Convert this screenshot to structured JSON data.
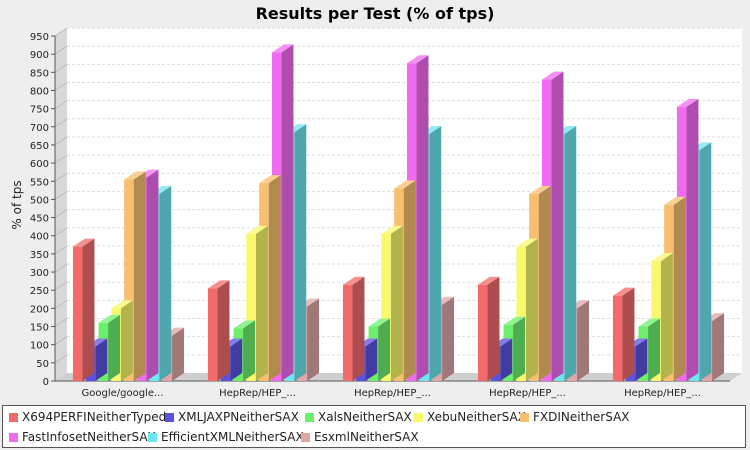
{
  "chart_data": {
    "type": "bar",
    "title": "Results per Test (% of tps)",
    "xlabel": "",
    "ylabel": "% of tps",
    "ylim": [
      0,
      950
    ],
    "yticks": [
      "0",
      "50",
      "100",
      "150",
      "200",
      "250",
      "300",
      "350",
      "400",
      "450",
      "500",
      "550",
      "600",
      "650",
      "700",
      "750",
      "800",
      "850",
      "900",
      "950"
    ],
    "grid": true,
    "legend_placement": "bottom",
    "categories": [
      "Google/google...",
      "HepRep/HEP_...",
      "HepRep/HEP_...",
      "HepRep/HEP_...",
      "HepRep/HEP_..."
    ],
    "series": [
      {
        "name": "X694PERFINeitherTyped",
        "color": "#f26b6b",
        "values": [
          370,
          255,
          265,
          265,
          235
        ]
      },
      {
        "name": "XMLJAXPNeitherSAX",
        "color": "#5b52e0",
        "values": [
          95,
          95,
          95,
          95,
          95
        ]
      },
      {
        "name": "XalsNeitherSAX",
        "color": "#6cf06c",
        "values": [
          160,
          145,
          150,
          155,
          150
        ]
      },
      {
        "name": "XebuNeitherSAX",
        "color": "#f8f86a",
        "values": [
          200,
          405,
          405,
          370,
          330
        ]
      },
      {
        "name": "FXDINeitherSAX",
        "color": "#f7bf6e",
        "values": [
          555,
          545,
          530,
          515,
          485
        ]
      },
      {
        "name": "FastInfosetNeitherSAX",
        "color": "#f16bf1",
        "values": [
          560,
          905,
          875,
          830,
          755
        ]
      },
      {
        "name": "EfficientXMLNeitherSAX",
        "color": "#6ee6f0",
        "values": [
          515,
          685,
          680,
          680,
          635
        ]
      },
      {
        "name": "EsxmlNeitherSAX",
        "color": "#e0a6a6",
        "values": [
          125,
          205,
          210,
          200,
          165
        ]
      }
    ]
  }
}
